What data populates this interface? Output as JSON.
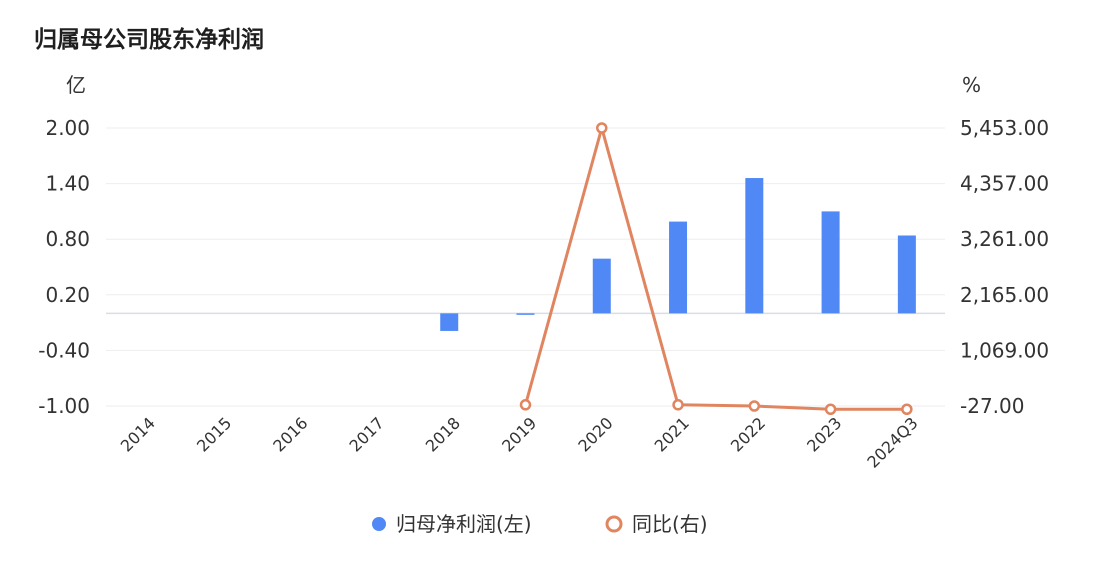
{
  "title": "归属母公司股东净利润",
  "colors": {
    "bar": "#5089f5",
    "line": "#e08560",
    "grid": "#eeeeee",
    "zero": "#d9dde8",
    "text": "#333333"
  },
  "chart_data": {
    "type": "bar",
    "categories": [
      "2014",
      "2015",
      "2016",
      "2017",
      "2018",
      "2019",
      "2020",
      "2021",
      "2022",
      "2023",
      "2024Q3"
    ],
    "series": [
      {
        "name": "归母净利润(左)",
        "type": "bar",
        "axis": "left",
        "values": [
          null,
          null,
          null,
          null,
          -0.19,
          -0.01,
          0.59,
          0.99,
          1.46,
          1.1,
          0.84
        ]
      },
      {
        "name": "同比(右)",
        "type": "line",
        "axis": "right",
        "values": [
          null,
          null,
          null,
          null,
          null,
          -3,
          5453,
          -3,
          -27,
          -91,
          -91
        ]
      }
    ],
    "y_left": {
      "unit": "亿",
      "ticks": [
        "2.00",
        "1.40",
        "0.80",
        "0.20",
        "-0.40",
        "-1.00"
      ],
      "ylim": [
        -1.0,
        2.0
      ]
    },
    "y_right": {
      "unit": "%",
      "ticks": [
        "5,453.00",
        "4,357.00",
        "3,261.00",
        "2,165.00",
        "1,069.00",
        "-27.00"
      ],
      "ylim": [
        -27,
        5453
      ]
    },
    "grid": true,
    "legend_position": "bottom"
  }
}
